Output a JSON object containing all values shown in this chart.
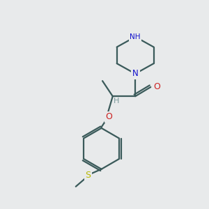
{
  "bg_color": "#e8eaeb",
  "bond_color": "#3a5a5a",
  "N_color": "#1010cc",
  "O_color": "#cc2020",
  "S_color": "#b8b800",
  "H_color": "#7a9a9a",
  "line_width": 1.6,
  "figsize": [
    3.0,
    3.0
  ],
  "dpi": 100,
  "xlim": [
    0,
    10
  ],
  "ylim": [
    0,
    10
  ]
}
